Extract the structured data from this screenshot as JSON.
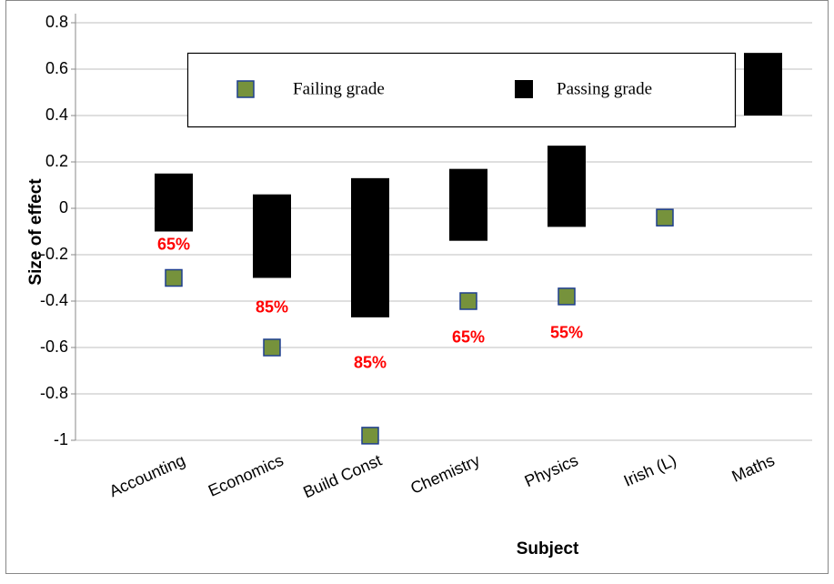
{
  "chart_data": {
    "type": "floating-bar",
    "x_label": "Subject",
    "y_label": "Size of effect",
    "categories": [
      "Accounting",
      "Economics",
      "Build Const",
      "Chemistry",
      "Physics",
      "Irish (L)",
      "Maths"
    ],
    "series": [
      {
        "name": "Failing grade",
        "color": "#76923c",
        "edge": "#1f3f8f",
        "values": [
          -0.3,
          -0.6,
          -0.98,
          -0.4,
          -0.38,
          -0.04,
          null
        ]
      },
      {
        "name": "Passing grade",
        "color": "#000000",
        "low": [
          -0.1,
          -0.3,
          -0.47,
          -0.14,
          -0.08,
          null,
          0.4
        ],
        "high": [
          0.15,
          0.06,
          0.13,
          0.17,
          0.27,
          null,
          0.67
        ]
      }
    ],
    "annotations": [
      {
        "text": "65%",
        "category": 0,
        "y": -0.16
      },
      {
        "text": "85%",
        "category": 1,
        "y": -0.43
      },
      {
        "text": "85%",
        "category": 2,
        "y": -0.67
      },
      {
        "text": "65%",
        "category": 3,
        "y": -0.56
      },
      {
        "text": "55%",
        "category": 4,
        "y": -0.54
      }
    ],
    "ylim": [
      -1,
      0.8
    ],
    "yticks": [
      -1,
      -0.8,
      -0.6,
      -0.4,
      -0.2,
      0,
      0.2,
      0.4,
      0.6,
      0.8
    ],
    "grid": true
  }
}
